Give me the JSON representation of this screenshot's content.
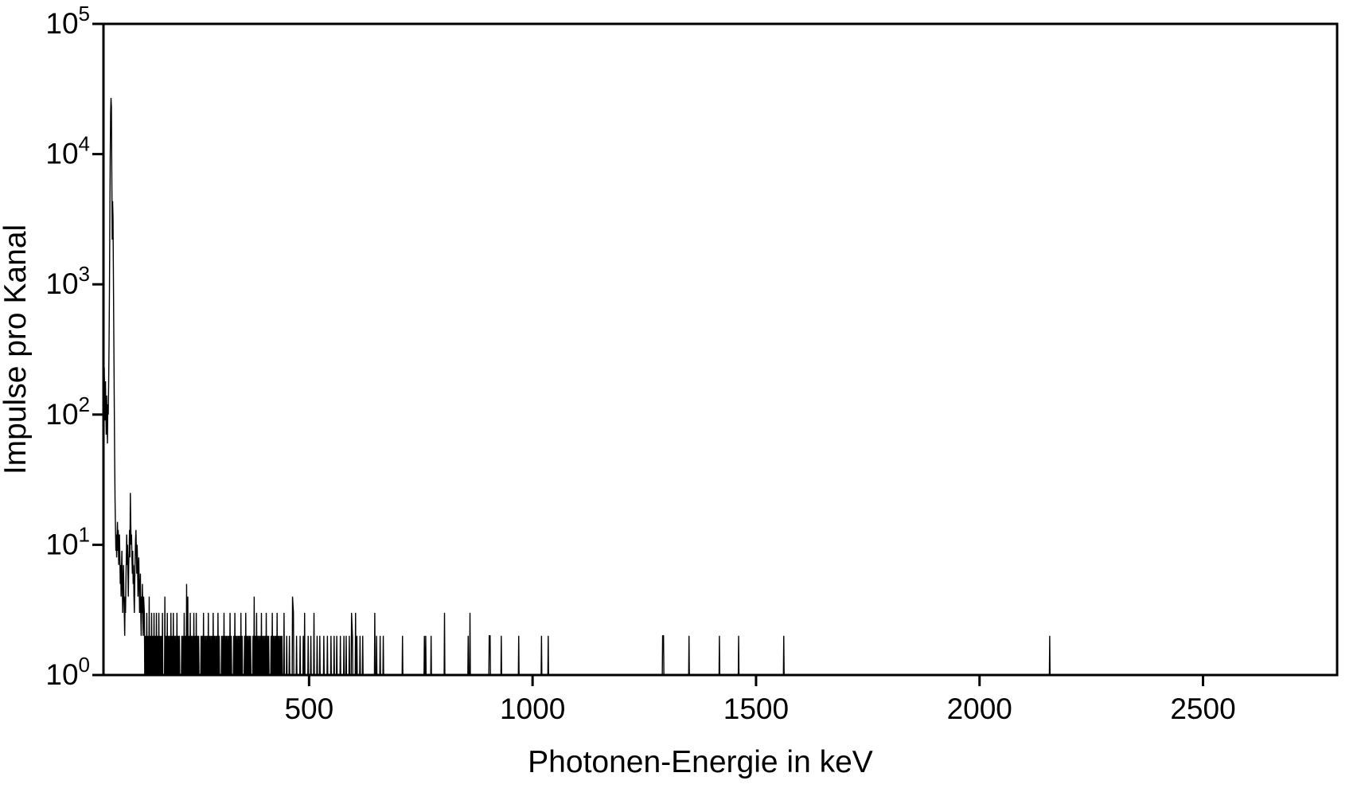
{
  "colors": {
    "background": "#ffffff",
    "line": "#000000",
    "axis": "#000000",
    "text": "#000000"
  },
  "chart_data": {
    "type": "line",
    "subtype": "gamma-spectrum-histogram",
    "title": "",
    "xlabel": "Photonen-Energie in keV",
    "ylabel": "Impulse pro Kanal",
    "grid": false,
    "legend": null,
    "x_axis": {
      "min": 40,
      "max": 2800,
      "ticks": [
        500,
        1000,
        1500,
        2000,
        2500
      ],
      "tick_labels": [
        "500",
        "1000",
        "1500",
        "2000",
        "2500"
      ]
    },
    "y_axis": {
      "scale": "log",
      "min": 1,
      "max": 100000,
      "tick_exponents": [
        0,
        1,
        2,
        3,
        4,
        5
      ],
      "tick_labels": [
        "10⁰",
        "10¹",
        "10²",
        "10³",
        "10⁴",
        "10⁵"
      ]
    },
    "baseline_counts": 1,
    "gap_threshold_kev": 2.0,
    "points": [
      [
        40,
        75
      ],
      [
        40.9,
        150
      ],
      [
        41.8,
        230
      ],
      [
        42.7,
        130
      ],
      [
        43.6,
        90
      ],
      [
        44.5,
        180
      ],
      [
        45.3,
        110
      ],
      [
        46.2,
        70
      ],
      [
        47.1,
        140
      ],
      [
        48,
        95
      ],
      [
        48.9,
        60
      ],
      [
        49.8,
        120
      ],
      [
        50.7,
        100
      ],
      [
        51.6,
        170
      ],
      [
        52.5,
        350
      ],
      [
        53.4,
        900
      ],
      [
        54.2,
        2800
      ],
      [
        55.1,
        9500
      ],
      [
        56,
        21000
      ],
      [
        56.9,
        27000
      ],
      [
        57.8,
        23000
      ],
      [
        58.7,
        6500
      ],
      [
        59.6,
        2200
      ],
      [
        60.5,
        4350
      ],
      [
        61.4,
        3200
      ],
      [
        62.3,
        1100
      ],
      [
        63.2,
        380
      ],
      [
        64.1,
        130
      ],
      [
        65,
        48
      ],
      [
        65.9,
        22
      ],
      [
        66.8,
        14
      ],
      [
        67.7,
        9
      ],
      [
        68.6,
        12
      ],
      [
        69.5,
        8
      ],
      [
        70.4,
        11
      ],
      [
        71.3,
        15
      ],
      [
        72.2,
        9
      ],
      [
        73.1,
        13
      ],
      [
        74,
        7
      ],
      [
        74.9,
        10
      ],
      [
        75.8,
        12
      ],
      [
        76.7,
        8
      ],
      [
        77.6,
        5
      ],
      [
        78.5,
        7
      ],
      [
        79.4,
        4
      ],
      [
        80.3,
        6
      ],
      [
        81.2,
        9
      ],
      [
        82.1,
        5
      ],
      [
        83,
        3
      ],
      [
        83.9,
        5
      ],
      [
        84.8,
        7
      ],
      [
        85.7,
        4
      ],
      [
        86.6,
        3
      ],
      [
        87.5,
        2
      ],
      [
        88.4,
        4
      ],
      [
        89.3,
        3
      ],
      [
        90.2,
        5
      ],
      [
        91.1,
        8
      ],
      [
        92,
        12
      ],
      [
        92.9,
        7
      ],
      [
        93.8,
        10
      ],
      [
        94.7,
        6
      ],
      [
        95.6,
        4
      ],
      [
        96.5,
        7
      ],
      [
        97.4,
        9
      ],
      [
        98.3,
        13
      ],
      [
        99.2,
        8
      ],
      [
        100.1,
        25
      ],
      [
        101,
        15
      ],
      [
        101.9,
        10
      ],
      [
        102.8,
        12
      ],
      [
        103.7,
        8
      ],
      [
        104.6,
        6
      ],
      [
        105.5,
        9
      ],
      [
        106.4,
        5
      ],
      [
        107.3,
        7
      ],
      [
        108.2,
        4
      ],
      [
        109.1,
        3
      ],
      [
        110,
        5
      ],
      [
        110.9,
        8
      ],
      [
        111.8,
        11
      ],
      [
        112.7,
        13
      ],
      [
        113.6,
        9
      ],
      [
        114.5,
        6
      ],
      [
        115.4,
        10
      ],
      [
        116.3,
        7
      ],
      [
        117.2,
        4
      ],
      [
        118.1,
        6
      ],
      [
        119,
        8
      ],
      [
        119.9,
        5
      ],
      [
        120.8,
        3
      ],
      [
        121.7,
        4
      ],
      [
        122.6,
        6
      ],
      [
        123.5,
        3
      ],
      [
        124.4,
        2
      ],
      [
        125.3,
        4
      ],
      [
        126.2,
        3
      ],
      [
        127.1,
        5
      ],
      [
        128,
        3
      ],
      [
        128.9,
        2
      ],
      [
        129.8,
        4
      ],
      [
        131.5,
        3
      ],
      [
        134.2,
        2
      ],
      [
        136.9,
        3
      ],
      [
        139.6,
        2
      ],
      [
        142.3,
        4
      ],
      [
        145,
        2
      ],
      [
        147.7,
        3
      ],
      [
        150.4,
        2
      ],
      [
        153.1,
        3
      ],
      [
        155.8,
        2
      ],
      [
        158.5,
        3
      ],
      [
        161.2,
        2
      ],
      [
        163.9,
        3
      ],
      [
        166.6,
        2
      ],
      [
        169.3,
        2
      ],
      [
        172,
        3
      ],
      [
        177.4,
        4
      ],
      [
        180.1,
        2
      ],
      [
        182.8,
        3
      ],
      [
        185.5,
        2
      ],
      [
        188.2,
        2
      ],
      [
        190.9,
        3
      ],
      [
        193.6,
        2
      ],
      [
        196.3,
        3
      ],
      [
        199,
        2
      ],
      [
        201.7,
        2
      ],
      [
        204.4,
        3
      ],
      [
        207.1,
        2
      ],
      [
        209.8,
        2
      ],
      [
        215.2,
        2
      ],
      [
        217.9,
        2
      ],
      [
        220.6,
        3
      ],
      [
        223.3,
        2
      ],
      [
        226,
        5
      ],
      [
        228.7,
        4
      ],
      [
        231.4,
        2
      ],
      [
        234.1,
        3
      ],
      [
        236.8,
        2
      ],
      [
        239.5,
        2
      ],
      [
        242.2,
        3
      ],
      [
        244.9,
        2
      ],
      [
        247.6,
        3
      ],
      [
        250.3,
        2
      ],
      [
        253,
        2
      ],
      [
        258.4,
        2
      ],
      [
        261.1,
        2
      ],
      [
        263.8,
        3
      ],
      [
        266.5,
        2
      ],
      [
        269.2,
        2
      ],
      [
        271.9,
        2
      ],
      [
        274.6,
        3
      ],
      [
        277.3,
        2
      ],
      [
        280,
        2
      ],
      [
        282.7,
        2
      ],
      [
        285.4,
        3
      ],
      [
        288.1,
        2
      ],
      [
        290.8,
        2
      ],
      [
        293.5,
        2
      ],
      [
        296.2,
        3
      ],
      [
        298.9,
        2
      ],
      [
        304.3,
        2
      ],
      [
        307,
        2
      ],
      [
        309.7,
        3
      ],
      [
        312.4,
        2
      ],
      [
        315.1,
        2
      ],
      [
        317.8,
        2
      ],
      [
        320.5,
        2
      ],
      [
        323.2,
        3
      ],
      [
        325.9,
        2
      ],
      [
        331.3,
        2
      ],
      [
        334,
        3
      ],
      [
        336.7,
        2
      ],
      [
        339.4,
        2
      ],
      [
        342.1,
        2
      ],
      [
        344.8,
        2
      ],
      [
        347.5,
        3
      ],
      [
        350.2,
        2
      ],
      [
        355.6,
        2
      ],
      [
        358.3,
        3
      ],
      [
        361,
        2
      ],
      [
        363.7,
        2
      ],
      [
        366.4,
        2
      ],
      [
        369.1,
        2
      ],
      [
        374.5,
        2
      ],
      [
        377.2,
        4
      ],
      [
        379.9,
        2
      ],
      [
        382.6,
        3
      ],
      [
        385.3,
        2
      ],
      [
        388,
        2
      ],
      [
        390.7,
        2
      ],
      [
        393.4,
        3
      ],
      [
        396.1,
        2
      ],
      [
        398.8,
        2
      ],
      [
        401.5,
        2
      ],
      [
        404.2,
        3
      ],
      [
        406.9,
        2
      ],
      [
        409.6,
        2
      ],
      [
        415,
        2
      ],
      [
        417.7,
        3
      ],
      [
        420.4,
        2
      ],
      [
        423.1,
        2
      ],
      [
        425.8,
        2
      ],
      [
        428.5,
        3
      ],
      [
        431.2,
        2
      ],
      [
        433.9,
        2
      ],
      [
        436.6,
        2
      ],
      [
        439.3,
        2
      ],
      [
        444,
        3
      ],
      [
        450,
        2
      ],
      [
        456,
        2
      ],
      [
        463,
        4
      ],
      [
        465,
        3
      ],
      [
        472,
        2
      ],
      [
        480,
        2
      ],
      [
        487,
        2
      ],
      [
        490,
        3
      ],
      [
        498,
        2
      ],
      [
        504,
        2
      ],
      [
        511,
        3
      ],
      [
        518,
        2
      ],
      [
        524,
        2
      ],
      [
        533,
        2
      ],
      [
        541,
        2
      ],
      [
        549,
        2
      ],
      [
        556,
        2
      ],
      [
        562,
        2
      ],
      [
        570,
        2
      ],
      [
        578,
        2
      ],
      [
        583,
        2
      ],
      [
        590,
        2
      ],
      [
        595,
        3
      ],
      [
        597,
        2
      ],
      [
        604,
        3
      ],
      [
        607,
        2
      ],
      [
        614,
        2
      ],
      [
        620,
        2
      ],
      [
        647,
        3
      ],
      [
        651,
        2
      ],
      [
        659,
        2
      ],
      [
        666,
        2
      ],
      [
        709,
        2
      ],
      [
        758,
        2
      ],
      [
        761,
        2
      ],
      [
        773,
        2
      ],
      [
        803,
        3
      ],
      [
        856,
        2
      ],
      [
        860,
        3
      ],
      [
        903,
        2
      ],
      [
        905,
        2
      ],
      [
        930,
        2
      ],
      [
        969,
        2
      ],
      [
        1020,
        2
      ],
      [
        1035,
        2
      ],
      [
        1291,
        2
      ],
      [
        1293,
        2
      ],
      [
        1350,
        2
      ],
      [
        1418,
        2
      ],
      [
        1461,
        2
      ],
      [
        1562,
        2
      ],
      [
        2157,
        2
      ]
    ]
  }
}
